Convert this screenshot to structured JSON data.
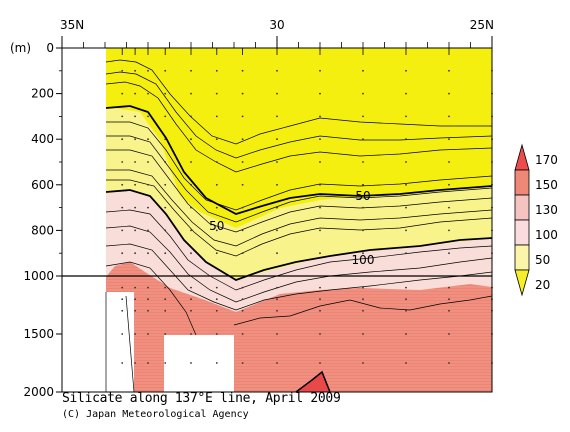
{
  "chart_data": {
    "type": "contour",
    "title": "Silicate along 137°E line, April 2009",
    "credit": "(C) Japan Meteorological Agency",
    "x_axis": {
      "position": "top",
      "ticks": [
        {
          "value": 35,
          "label": "35N"
        },
        {
          "value": 30,
          "label": "30"
        },
        {
          "value": 25,
          "label": "25N"
        }
      ],
      "range": [
        35,
        25
      ]
    },
    "y_axis": {
      "unit_label": "(m)",
      "ticks": [
        0,
        200,
        400,
        600,
        800,
        1000,
        1500,
        2000
      ],
      "upper_segment": [
        0,
        1000
      ],
      "lower_segment": [
        1000,
        2000
      ]
    },
    "station_latitudes": [
      33.6,
      33.3,
      33.0,
      32.6,
      32.0,
      31.4,
      30.8,
      30.0,
      29.0,
      28.0,
      27.0,
      26.0,
      25.0
    ],
    "contour_levels": [
      20,
      50,
      100,
      130,
      150,
      170
    ],
    "labeled_contours": [
      {
        "text": "50",
        "lat": 31.4,
        "depth": 780
      },
      {
        "text": "50",
        "lat": 28.0,
        "depth": 650
      },
      {
        "text": "100",
        "lat": 28.0,
        "depth": 930
      }
    ],
    "colorbar": {
      "labels": [
        "170",
        "150",
        "130",
        "100",
        "50",
        "20"
      ],
      "colors": [
        "#ee4c4c",
        "#f08878",
        "#f5c4c0",
        "#fadcdc",
        "#faf5a8",
        "#f5ee28"
      ]
    },
    "colors": {
      "yellow": "#f5ef10",
      "light_yellow": "#f8f38a",
      "pale_pink": "#f8ddd8",
      "pink": "#f09080",
      "red": "#e84848"
    }
  }
}
